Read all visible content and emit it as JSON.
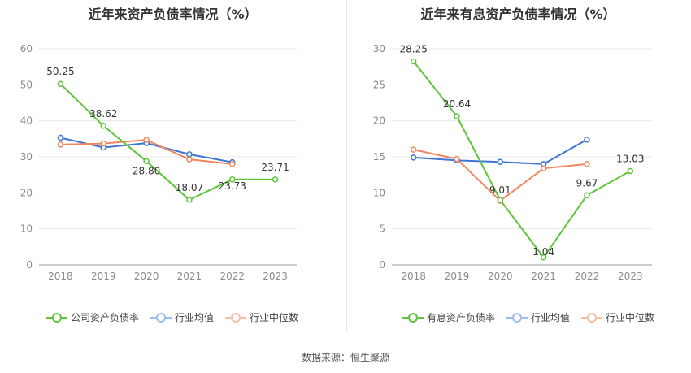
{
  "chart_data": [
    {
      "type": "line",
      "title": "近年来资产负债率情况（%）",
      "categories": [
        "2018",
        "2019",
        "2020",
        "2021",
        "2022",
        "2023"
      ],
      "ylim": [
        0,
        60
      ],
      "yticks": [
        0,
        10,
        20,
        30,
        40,
        50,
        60
      ],
      "grid": true,
      "legend": "bottom",
      "series": [
        {
          "name": "公司资产负债率",
          "color": "#5ec53a",
          "values": [
            50.25,
            38.62,
            28.8,
            18.07,
            23.73,
            23.71
          ],
          "labels": [
            "50.25",
            "38.62",
            "28.80",
            "18.07",
            "23.73",
            "23.71"
          ]
        },
        {
          "name": "行业均值",
          "color": "#3e76d6",
          "values": [
            35.3,
            32.6,
            33.8,
            30.7,
            28.5,
            null
          ]
        },
        {
          "name": "行业中位数",
          "color": "#f0875f",
          "values": [
            33.4,
            33.7,
            34.7,
            29.3,
            28.0,
            null
          ]
        }
      ]
    },
    {
      "type": "line",
      "title": "近年来有息资产负债率情况（%）",
      "categories": [
        "2018",
        "2019",
        "2020",
        "2021",
        "2022",
        "2023"
      ],
      "ylim": [
        0,
        30
      ],
      "yticks": [
        0,
        5,
        10,
        15,
        20,
        25,
        30
      ],
      "grid": true,
      "legend": "bottom",
      "series": [
        {
          "name": "有息资产负债率",
          "color": "#5ec53a",
          "values": [
            28.25,
            20.64,
            9.01,
            1.04,
            9.67,
            13.03
          ],
          "labels": [
            "28.25",
            "20.64",
            "9.01",
            "1.04",
            "9.67",
            "13.03"
          ]
        },
        {
          "name": "行业均值",
          "color": "#3e76d6",
          "values": [
            14.9,
            14.5,
            14.3,
            14.0,
            17.4,
            null
          ]
        },
        {
          "name": "行业中位数",
          "color": "#f0875f",
          "values": [
            16.0,
            14.7,
            8.9,
            13.4,
            14.0,
            null
          ]
        }
      ]
    }
  ],
  "footer": {
    "source": "数据来源：恒生聚源"
  }
}
